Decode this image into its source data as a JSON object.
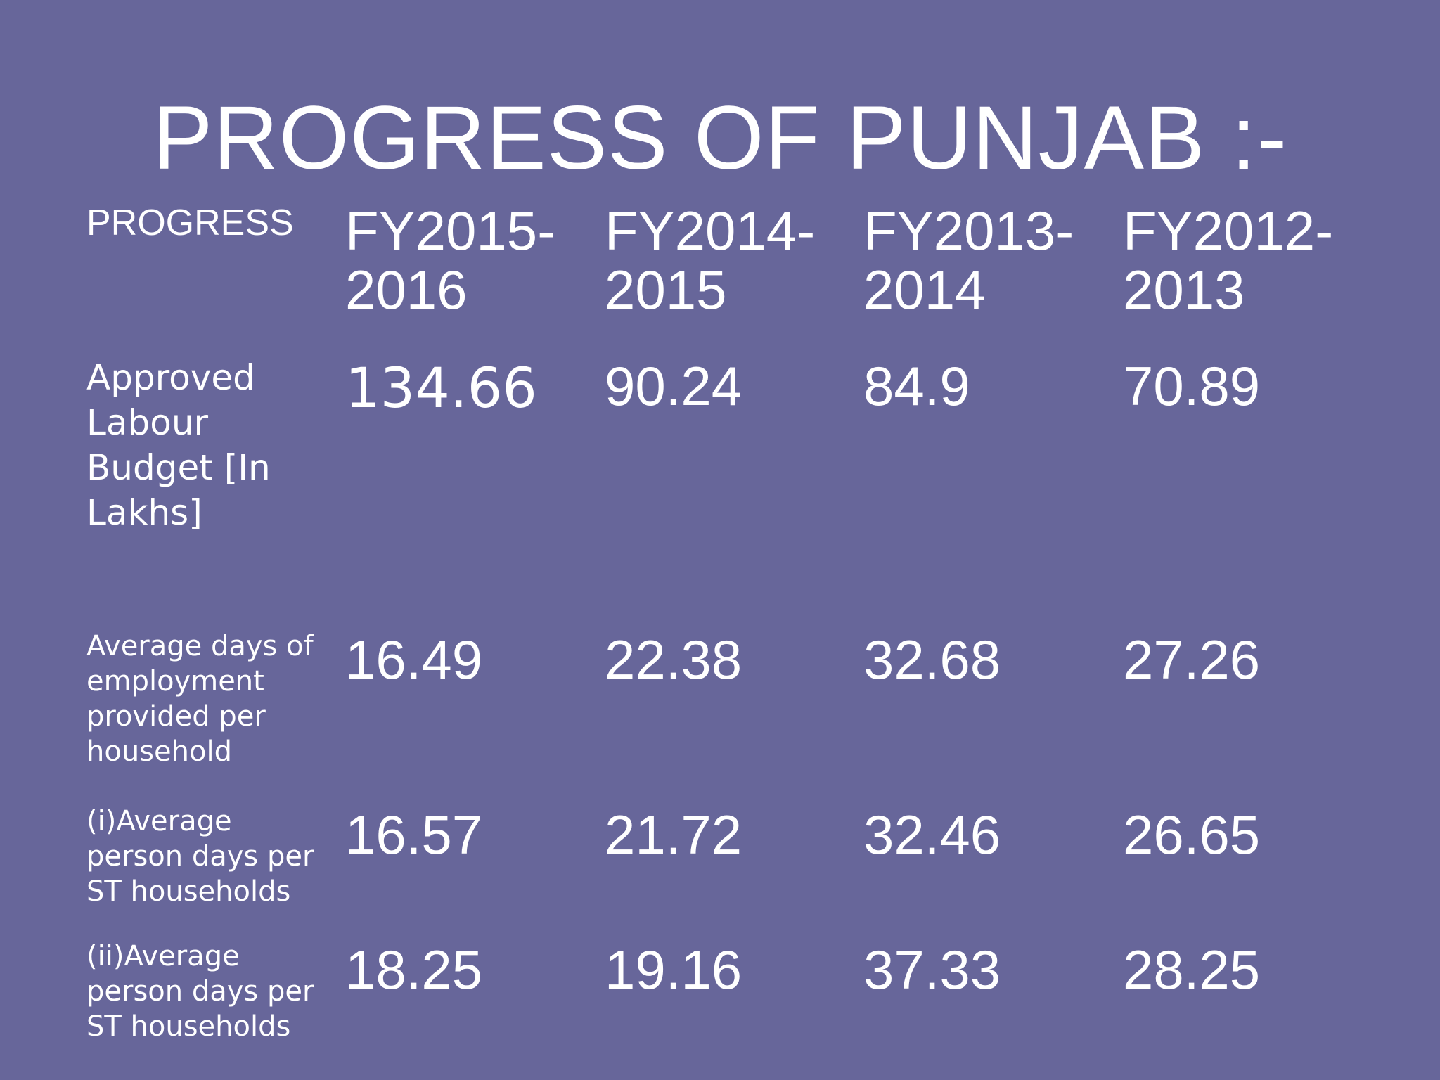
{
  "title": "PROGRESS OF PUNJAB :-",
  "table": {
    "header": {
      "label": "PROGRESS",
      "years": [
        "FY2015-\n2016",
        "FY2014-\n2015",
        "FY2013-\n2014",
        "FY2012-\n2013"
      ]
    },
    "rows": [
      {
        "label": "Approved\nLabour\nBudget  [In\nLakhs]",
        "values": [
          "134.66",
          "90.24",
          "84.9",
          "70.89"
        ]
      },
      {
        "label": "Average days of\nemployment\nprovided per\nhousehold",
        "values": [
          "16.49",
          "22.38",
          "32.68",
          "27.26"
        ]
      },
      {
        "label": "(i)Average\nperson days per\nST households",
        "values": [
          "16.57",
          "21.72",
          "32.46",
          "26.65"
        ]
      },
      {
        "label": "(ii)Average\nperson days per\nST households",
        "values": [
          "18.25",
          "19.16",
          "37.33",
          "28.25"
        ]
      }
    ]
  }
}
